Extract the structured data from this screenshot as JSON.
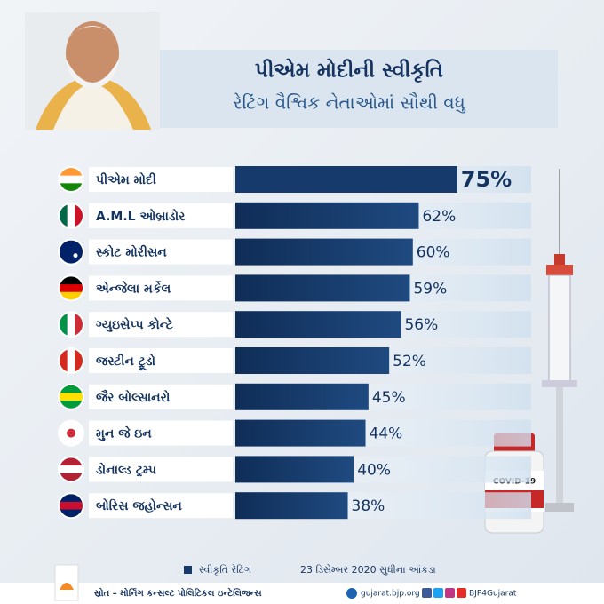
{
  "chart_data": {
    "type": "bar",
    "orientation": "horizontal",
    "title": "પીએમ મોદીની સ્વીકૃતિ",
    "subtitle": "રેટિંગ વૈશ્વિક નેતાઓમાં સૌથી વધુ",
    "categories": [
      "પીએમ મોદી",
      "A.M.L ઓબ્રાડોર",
      "સ્કોટ મોરીસન",
      "એન્જેલા મર્કેલ",
      "ગ્યુઇસેપ્પ કોન્ટે",
      "જસ્ટીન ટ્રૂડો",
      "જૈર બોલ્સાનરો",
      "મુન જે ઇન",
      "ડોનાલ્ડ ટ્રમ્પ",
      "બોરિસ જહોન્સન"
    ],
    "values": [
      75,
      62,
      60,
      59,
      56,
      52,
      45,
      44,
      40,
      38
    ],
    "value_labels": [
      "75%",
      "62%",
      "60%",
      "59%",
      "56%",
      "52%",
      "45%",
      "44%",
      "40%",
      "38%"
    ],
    "color": "#163a6b",
    "xlim": [
      0,
      100
    ],
    "legend": "સ્વીકૃતિ રેટિંગ",
    "note": "23 ડિસેમ્બર 2020 સુધીના આંકડા"
  },
  "vial_label": "COVID-19",
  "footer": {
    "source": "સ્રોત – મોર્નિંગ કન્સલ્ટ પોલિટિકલ ઇન્ટેલિજન્સ",
    "website": "gujarat.bjp.org",
    "handle": "BJP4Gujarat"
  }
}
